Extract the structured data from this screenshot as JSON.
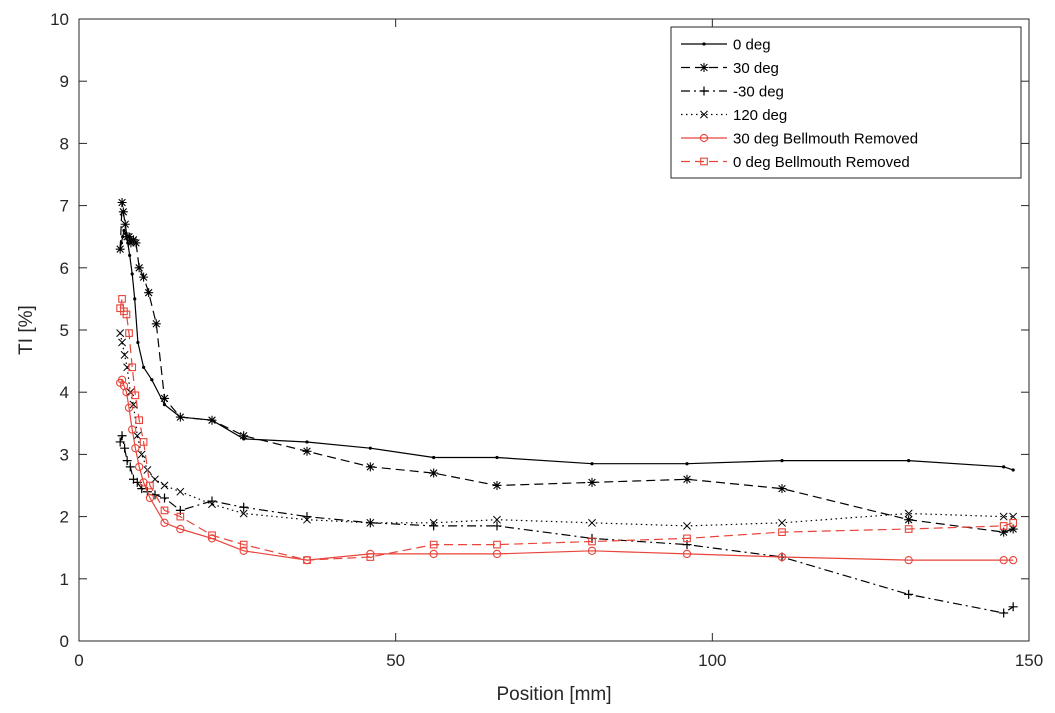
{
  "chart_data": {
    "type": "line",
    "xlabel": "Position [mm]",
    "ylabel": "TI [%]",
    "xlim": [
      0,
      150
    ],
    "ylim": [
      0,
      10
    ],
    "xticks": [
      0,
      50,
      100,
      150
    ],
    "yticks": [
      0,
      1,
      2,
      3,
      4,
      5,
      6,
      7,
      8,
      9,
      10
    ],
    "grid": false,
    "legend_position": "top-right",
    "series": [
      {
        "name": "0 deg",
        "color": "#000000",
        "dash": "solid",
        "marker": "point",
        "x": [
          6.5,
          6.7,
          6.9,
          7.1,
          7.4,
          7.7,
          8.0,
          8.4,
          8.8,
          9.3,
          10.2,
          11.5,
          13.5,
          16,
          21,
          26,
          36,
          46,
          56,
          66,
          81,
          96,
          111,
          131,
          146,
          147.5
        ],
        "y": [
          6.3,
          6.4,
          6.5,
          6.6,
          6.55,
          6.4,
          6.2,
          5.9,
          5.5,
          4.8,
          4.4,
          4.2,
          3.8,
          3.6,
          3.55,
          3.25,
          3.2,
          3.1,
          2.95,
          2.95,
          2.85,
          2.85,
          2.9,
          2.9,
          2.8,
          2.75
        ]
      },
      {
        "name": "30 deg",
        "color": "#000000",
        "dash": "dashed",
        "marker": "asterisk",
        "x": [
          6.5,
          6.8,
          7.0,
          7.3,
          7.6,
          7.9,
          8.2,
          8.6,
          9.0,
          9.5,
          10.2,
          11,
          12.2,
          13.5,
          16,
          21,
          26,
          36,
          46,
          56,
          66,
          81,
          96,
          111,
          131,
          146,
          147.5
        ],
        "y": [
          6.3,
          7.05,
          6.9,
          6.7,
          6.5,
          6.5,
          6.4,
          6.45,
          6.4,
          6.0,
          5.85,
          5.6,
          5.1,
          3.9,
          3.6,
          3.55,
          3.3,
          3.05,
          2.8,
          2.7,
          2.5,
          2.55,
          2.6,
          2.45,
          1.95,
          1.75,
          1.8
        ]
      },
      {
        "name": "-30 deg",
        "color": "#000000",
        "dash": "dashdot",
        "marker": "plus",
        "x": [
          6.5,
          6.8,
          7.2,
          7.6,
          8.1,
          8.6,
          9.2,
          9.9,
          10.8,
          12,
          13.5,
          16,
          21,
          26,
          36,
          46,
          56,
          66,
          81,
          96,
          111,
          131,
          146,
          147.5
        ],
        "y": [
          3.2,
          3.3,
          3.1,
          2.9,
          2.8,
          2.6,
          2.55,
          2.45,
          2.4,
          2.35,
          2.3,
          2.1,
          2.25,
          2.15,
          2.0,
          1.9,
          1.85,
          1.85,
          1.65,
          1.55,
          1.35,
          0.75,
          0.45,
          0.55
        ]
      },
      {
        "name": "120 deg",
        "color": "#000000",
        "dash": "dotted",
        "marker": "cross",
        "x": [
          6.5,
          6.8,
          7.2,
          7.6,
          8.1,
          8.6,
          9.2,
          9.9,
          10.8,
          12,
          13.5,
          16,
          21,
          26,
          36,
          46,
          56,
          66,
          81,
          96,
          111,
          131,
          146,
          147.5
        ],
        "y": [
          4.95,
          4.8,
          4.6,
          4.4,
          4.0,
          3.8,
          3.3,
          3.0,
          2.75,
          2.6,
          2.5,
          2.4,
          2.2,
          2.05,
          1.95,
          1.9,
          1.9,
          1.95,
          1.9,
          1.85,
          1.9,
          2.05,
          2.0,
          2.0
        ]
      },
      {
        "name": "30 deg Bellmouth Removed",
        "color": "#e8443a",
        "dash": "solid",
        "marker": "circle",
        "x": [
          6.5,
          6.8,
          7.1,
          7.5,
          7.9,
          8.4,
          8.9,
          9.5,
          10.2,
          11.2,
          13.5,
          16,
          21,
          26,
          36,
          46,
          56,
          66,
          81,
          96,
          111,
          131,
          146,
          147.5
        ],
        "y": [
          4.15,
          4.2,
          4.1,
          4.0,
          3.75,
          3.4,
          3.1,
          2.8,
          2.55,
          2.3,
          1.9,
          1.8,
          1.65,
          1.45,
          1.3,
          1.4,
          1.4,
          1.4,
          1.45,
          1.4,
          1.35,
          1.3,
          1.3,
          1.3
        ]
      },
      {
        "name": "0 deg Bellmouth Removed",
        "color": "#e8443a",
        "dash": "dashed",
        "marker": "square",
        "x": [
          6.5,
          6.8,
          7.1,
          7.5,
          7.9,
          8.4,
          8.9,
          9.5,
          10.2,
          11.2,
          13.5,
          16,
          21,
          26,
          36,
          46,
          56,
          66,
          81,
          96,
          111,
          131,
          146,
          147.5
        ],
        "y": [
          5.35,
          5.5,
          5.3,
          5.25,
          4.95,
          4.4,
          3.95,
          3.55,
          3.2,
          2.5,
          2.1,
          2.0,
          1.7,
          1.55,
          1.3,
          1.35,
          1.55,
          1.55,
          1.6,
          1.65,
          1.75,
          1.8,
          1.85,
          1.9
        ]
      }
    ]
  }
}
